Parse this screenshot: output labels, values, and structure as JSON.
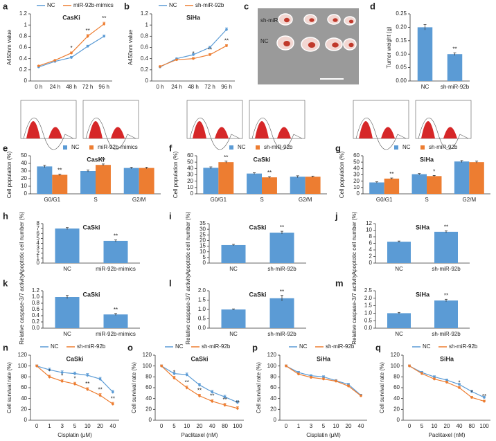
{
  "photo": {
    "panel": "c",
    "labels": [
      "sh-miR-92b",
      "NC"
    ]
  },
  "chart_data": [
    {
      "panel": "a",
      "type": "line",
      "title": "CasKi",
      "ylabel": "A450nm value",
      "categories": [
        "0 h",
        "24 h",
        "48 h",
        "72 h",
        "96 h"
      ],
      "ylim": [
        0,
        1.2
      ],
      "yticks": [
        0,
        0.2,
        0.4,
        0.6,
        0.8,
        1,
        1.2
      ],
      "series": [
        {
          "name": "NC",
          "color": "#5b9bd5",
          "values": [
            0.25,
            0.35,
            0.42,
            0.62,
            0.8
          ],
          "errors": [
            0.01,
            0.01,
            0.02,
            0.02,
            0.02
          ],
          "significance": [
            null,
            null,
            null,
            null,
            null
          ]
        },
        {
          "name": "miR-92b-mimics",
          "color": "#ed7d31",
          "values": [
            0.27,
            0.37,
            0.5,
            0.8,
            1.02
          ],
          "errors": [
            0.01,
            0.01,
            0.02,
            0.03,
            0.03
          ],
          "significance": [
            null,
            null,
            "*",
            "**",
            "**"
          ]
        }
      ]
    },
    {
      "panel": "b",
      "type": "line",
      "title": "SiHa",
      "ylabel": "A450nm value",
      "categories": [
        "0 h",
        "24 h",
        "48 h",
        "72 h",
        "96 h"
      ],
      "ylim": [
        0,
        1.2
      ],
      "yticks": [
        0,
        0.2,
        0.4,
        0.6,
        0.8,
        1,
        1.2
      ],
      "series": [
        {
          "name": "NC",
          "color": "#5b9bd5",
          "values": [
            0.25,
            0.4,
            0.47,
            0.6,
            0.92
          ],
          "errors": [
            0.01,
            0.01,
            0.02,
            0.02,
            0.03
          ],
          "significance": [
            null,
            null,
            null,
            null,
            null
          ]
        },
        {
          "name": "sh-miR-92b",
          "color": "#ed7d31",
          "values": [
            0.26,
            0.38,
            0.4,
            0.47,
            0.63
          ],
          "errors": [
            0.01,
            0.01,
            0.02,
            0.02,
            0.02
          ],
          "significance": [
            null,
            null,
            "*",
            "**",
            "**"
          ]
        }
      ]
    },
    {
      "panel": "d",
      "type": "bar",
      "ylabel": "Tumor weight (g)",
      "categories": [
        "NC",
        "sh-miR-92b"
      ],
      "color": "#5b9bd5",
      "ylim": [
        0,
        0.25
      ],
      "yticks": [
        {
          "value": 0,
          "label": "0.00"
        },
        {
          "value": 0.05,
          "label": "0.05"
        },
        {
          "value": 0.1,
          "label": "0.10"
        },
        {
          "value": 0.15,
          "label": "0.15"
        },
        {
          "value": 0.2,
          "label": "0.20"
        },
        {
          "value": 0.25,
          "label": "0.25"
        }
      ],
      "values": [
        0.2,
        0.1
      ],
      "errors": [
        0.01,
        0.005
      ],
      "significance": [
        null,
        "**"
      ]
    },
    {
      "panel": "e",
      "type": "bar",
      "title": "CasKi",
      "ylabel": "Cell population (%)",
      "categories": [
        "G0/G1",
        "S",
        "G2/M"
      ],
      "ylim": [
        0,
        50
      ],
      "yticks": [
        0,
        10,
        20,
        30,
        40,
        50
      ],
      "series": [
        {
          "name": "NC",
          "color": "#5b9bd5",
          "values": [
            36,
            30,
            34
          ],
          "errors": [
            1.5,
            1.2,
            1
          ],
          "significance": [
            null,
            null,
            null
          ]
        },
        {
          "name": "miR-92b-mimics",
          "color": "#ed7d31",
          "values": [
            25,
            38,
            34
          ],
          "errors": [
            1,
            1.2,
            1
          ],
          "significance": [
            "**",
            "**",
            null
          ]
        }
      ]
    },
    {
      "panel": "f",
      "type": "bar",
      "title": "CaSki",
      "ylabel": "Cell population (%)",
      "categories": [
        "G0/G1",
        "S",
        "G2/M"
      ],
      "ylim": [
        0,
        60
      ],
      "yticks": [
        0,
        10,
        20,
        30,
        40,
        50,
        60
      ],
      "series": [
        {
          "name": "NC",
          "color": "#5b9bd5",
          "values": [
            41,
            32,
            27
          ],
          "errors": [
            1.5,
            1.2,
            1.5
          ],
          "significance": [
            null,
            null,
            null
          ]
        },
        {
          "name": "sh-miR-92b",
          "color": "#ed7d31",
          "values": [
            50,
            26,
            27
          ],
          "errors": [
            1.5,
            1.2,
            1
          ],
          "significance": [
            "**",
            "**",
            null
          ]
        }
      ]
    },
    {
      "panel": "g",
      "type": "bar",
      "title": "SiHa",
      "ylabel": "Cell population (%)",
      "categories": [
        "G0/G1",
        "S",
        "G2/M"
      ],
      "ylim": [
        0,
        60
      ],
      "yticks": [
        0,
        10,
        20,
        30,
        40,
        50,
        60
      ],
      "series": [
        {
          "name": "NC",
          "color": "#5b9bd5",
          "values": [
            18,
            31,
            51
          ],
          "errors": [
            1,
            1,
            1.5
          ],
          "significance": [
            null,
            null,
            null
          ]
        },
        {
          "name": "sh-miR-92b",
          "color": "#ed7d31",
          "values": [
            24,
            28,
            50
          ],
          "errors": [
            1,
            1,
            1.5
          ],
          "significance": [
            "**",
            "*",
            null
          ]
        }
      ]
    },
    {
      "panel": "h",
      "type": "bar",
      "title": "CaSki",
      "ylabel": "Apoptotic cell number (%)",
      "categories": [
        "NC",
        "miR-92b-mimics"
      ],
      "color": "#5b9bd5",
      "ylim": [
        0,
        8
      ],
      "yticks": [
        0,
        1,
        2,
        3,
        4,
        5,
        6,
        7,
        8
      ],
      "values": [
        7,
        4.5
      ],
      "errors": [
        0.2,
        0.2
      ],
      "significance": [
        null,
        "**"
      ]
    },
    {
      "panel": "i",
      "type": "bar",
      "title": "CaSki",
      "ylabel": "Apoptotic cell number (%)",
      "categories": [
        "NC",
        "sh-miR-92b"
      ],
      "color": "#5b9bd5",
      "ylim": [
        0,
        35
      ],
      "yticks": [
        0,
        5,
        10,
        15,
        20,
        25,
        30,
        35
      ],
      "values": [
        16,
        27
      ],
      "errors": [
        0.6,
        1.2
      ],
      "significance": [
        null,
        "**"
      ]
    },
    {
      "panel": "j",
      "type": "bar",
      "title": "SiHa",
      "ylabel": "Apoptotic cell number (%)",
      "categories": [
        "NC",
        "sh-miR-92b"
      ],
      "color": "#5b9bd5",
      "ylim": [
        0,
        12
      ],
      "yticks": [
        0,
        2,
        4,
        6,
        8,
        10,
        12
      ],
      "values": [
        6.5,
        9.5
      ],
      "errors": [
        0.2,
        0.3
      ],
      "significance": [
        null,
        "**"
      ]
    },
    {
      "panel": "k",
      "type": "bar",
      "title": "CaSki",
      "ylabel": "Relative caspase-3/7 activity",
      "categories": [
        "NC",
        "miR-92b-mimics"
      ],
      "color": "#5b9bd5",
      "ylim": [
        0,
        1.2
      ],
      "yticks": [
        {
          "value": 0,
          "label": "0.0"
        },
        {
          "value": 0.2,
          "label": "0.2"
        },
        {
          "value": 0.4,
          "label": "0.4"
        },
        {
          "value": 0.6,
          "label": "0.6"
        },
        {
          "value": 0.8,
          "label": "0.8"
        },
        {
          "value": 1,
          "label": "1.0"
        },
        {
          "value": 1.2,
          "label": "1.2"
        }
      ],
      "values": [
        1,
        0.44
      ],
      "errors": [
        0.05,
        0.03
      ],
      "significance": [
        null,
        "**"
      ]
    },
    {
      "panel": "l",
      "type": "bar",
      "title": "CaSki",
      "ylabel": "Relative caspase-3/7 activity",
      "categories": [
        "NC",
        "sh-miR-92b"
      ],
      "color": "#5b9bd5",
      "ylim": [
        0,
        2
      ],
      "yticks": [
        {
          "value": 0,
          "label": "0.0"
        },
        {
          "value": 0.5,
          "label": "0.5"
        },
        {
          "value": 1,
          "label": "1.0"
        },
        {
          "value": 1.5,
          "label": "1.5"
        },
        {
          "value": 2,
          "label": "2.0"
        }
      ],
      "values": [
        1,
        1.6
      ],
      "errors": [
        0.03,
        0.15
      ],
      "significance": [
        null,
        "**"
      ]
    },
    {
      "panel": "m",
      "type": "bar",
      "title": "SiHa",
      "ylabel": "Relative caspase-3/7 activity",
      "categories": [
        "NC",
        "sh-miR-92b"
      ],
      "color": "#5b9bd5",
      "ylim": [
        0,
        2.5
      ],
      "yticks": [
        {
          "value": 0,
          "label": "0.0"
        },
        {
          "value": 0.5,
          "label": "0.5"
        },
        {
          "value": 1,
          "label": "1.0"
        },
        {
          "value": 1.5,
          "label": "1.5"
        },
        {
          "value": 2,
          "label": "2.0"
        },
        {
          "value": 2.5,
          "label": "2.5"
        }
      ],
      "values": [
        1,
        1.85
      ],
      "errors": [
        0.05,
        0.08
      ],
      "significance": [
        null,
        "**"
      ]
    },
    {
      "panel": "n",
      "type": "line",
      "title": "CaSki",
      "ylabel": "Cell survival rate (%)",
      "xlabel": "Cisplatin (μM)",
      "categories": [
        "0",
        "1",
        "3",
        "5",
        "10",
        "20",
        "40"
      ],
      "ylim": [
        0,
        120
      ],
      "yticks": [
        0,
        20,
        40,
        60,
        80,
        100,
        120
      ],
      "series": [
        {
          "name": "NC",
          "color": "#5b9bd5",
          "values": [
            100,
            93,
            88,
            86,
            83,
            76,
            52
          ],
          "errors": [
            2,
            3,
            3,
            3,
            3,
            3,
            3
          ],
          "significance": [
            null,
            null,
            null,
            null,
            null,
            null,
            null
          ]
        },
        {
          "name": "sh-miR-92b",
          "color": "#ed7d31",
          "values": [
            100,
            80,
            72,
            67,
            57,
            46,
            30
          ],
          "errors": [
            2,
            3,
            3,
            3,
            3,
            3,
            3
          ],
          "significance": [
            null,
            "*",
            "*",
            "*",
            "**",
            "**",
            "**"
          ]
        }
      ]
    },
    {
      "panel": "o",
      "type": "line",
      "title": "CaSki",
      "ylabel": "Cell survival rate (%)",
      "xlabel": "Paclitaxel (nM)",
      "categories": [
        "0",
        "5",
        "10",
        "20",
        "40",
        "80",
        "100"
      ],
      "ylim": [
        0,
        120
      ],
      "yticks": [
        0,
        20,
        40,
        60,
        80,
        100,
        120
      ],
      "series": [
        {
          "name": "NC",
          "color": "#5b9bd5",
          "values": [
            100,
            86,
            84,
            65,
            52,
            43,
            33
          ],
          "errors": [
            2,
            3,
            3,
            3,
            3,
            3,
            3
          ],
          "significance": [
            null,
            null,
            null,
            null,
            null,
            null,
            null
          ]
        },
        {
          "name": "sh-miR-92b",
          "color": "#ed7d31",
          "values": [
            100,
            78,
            60,
            45,
            35,
            28,
            22
          ],
          "errors": [
            2,
            3,
            3,
            3,
            3,
            3,
            3
          ],
          "significance": [
            null,
            "*",
            "**",
            "**",
            "**",
            "**",
            "**"
          ]
        }
      ]
    },
    {
      "panel": "p",
      "type": "line",
      "title": "SiHa",
      "ylabel": "Cell survival rate (%)",
      "xlabel": "Cisplatin (μM)",
      "categories": [
        "0",
        "1",
        "3",
        "5",
        "10",
        "20",
        "40"
      ],
      "ylim": [
        0,
        120
      ],
      "yticks": [
        0,
        20,
        40,
        60,
        80,
        100,
        120
      ],
      "series": [
        {
          "name": "NC",
          "color": "#5b9bd5",
          "values": [
            100,
            88,
            82,
            80,
            73,
            66,
            46
          ],
          "errors": [
            2,
            2,
            2,
            2,
            2,
            2,
            2
          ],
          "significance": [
            null,
            null,
            null,
            null,
            null,
            null,
            null
          ]
        },
        {
          "name": "sh-miR-92b",
          "color": "#ed7d31",
          "values": [
            100,
            85,
            79,
            76,
            72,
            63,
            45
          ],
          "errors": [
            2,
            2,
            2,
            2,
            2,
            2,
            2
          ],
          "significance": [
            null,
            null,
            null,
            null,
            null,
            null,
            null
          ]
        }
      ]
    },
    {
      "panel": "q",
      "type": "line",
      "title": "SiHa",
      "ylabel": "Cell survival rate (%)",
      "xlabel": "Paclitaxel (nM)",
      "categories": [
        "0",
        "5",
        "10",
        "20",
        "40",
        "80",
        "100"
      ],
      "ylim": [
        0,
        120
      ],
      "yticks": [
        0,
        20,
        40,
        60,
        80,
        100,
        120
      ],
      "series": [
        {
          "name": "NC",
          "color": "#5b9bd5",
          "values": [
            100,
            88,
            80,
            74,
            66,
            53,
            42
          ],
          "errors": [
            2,
            2,
            2,
            2,
            2,
            2,
            2
          ],
          "significance": [
            null,
            null,
            null,
            null,
            null,
            null,
            null
          ]
        },
        {
          "name": "sh-miR-92b",
          "color": "#ed7d31",
          "values": [
            100,
            86,
            76,
            70,
            60,
            42,
            35
          ],
          "errors": [
            2,
            2,
            2,
            2,
            2,
            2,
            2
          ],
          "significance": [
            null,
            null,
            null,
            null,
            "*",
            "*",
            "**"
          ]
        }
      ]
    }
  ]
}
